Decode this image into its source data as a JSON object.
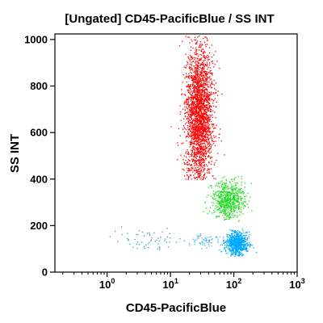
{
  "chart_data": {
    "type": "scatter",
    "title": "[Ungated] CD45-PacificBlue / SS INT",
    "xlabel": "CD45-PacificBlue",
    "ylabel": "SS INT",
    "x_scale": "log",
    "y_scale": "linear",
    "xlim": [
      0.15,
      1000
    ],
    "ylim": [
      0,
      1024
    ],
    "grid": false,
    "legend": "none",
    "x_ticks": [
      {
        "value": 1,
        "base": "10",
        "exp": "0"
      },
      {
        "value": 10,
        "base": "10",
        "exp": "1"
      },
      {
        "value": 100,
        "base": "10",
        "exp": "2"
      },
      {
        "value": 1000,
        "base": "10",
        "exp": "3"
      }
    ],
    "y_ticks": [
      {
        "value": 0,
        "label": "0"
      },
      {
        "value": 200,
        "label": "200"
      },
      {
        "value": 400,
        "label": "400"
      },
      {
        "value": 600,
        "label": "600"
      },
      {
        "value": 800,
        "label": "800"
      },
      {
        "value": 1000,
        "label": "1000"
      }
    ],
    "populations": [
      {
        "color": "#ff0000",
        "x_center": 28,
        "x_spread_log10": 0.11,
        "y_center": 680,
        "y_range": [
          400,
          1020
        ],
        "y_spread": 150,
        "n": 2400
      },
      {
        "color": "#22dd22",
        "x_center": 80,
        "x_spread_log10": 0.13,
        "y_center": 310,
        "y_range": [
          220,
          420
        ],
        "y_spread": 40,
        "n": 700
      },
      {
        "color": "#00aaff",
        "x_center": 110,
        "x_spread_log10": 0.09,
        "y_center": 125,
        "y_range": [
          70,
          190
        ],
        "y_spread": 25,
        "n": 700
      },
      {
        "color": "#3399cc",
        "x_center": 4,
        "x_spread_log10": 0.25,
        "y_center": 140,
        "y_range": [
          90,
          200
        ],
        "y_spread": 25,
        "n": 60
      },
      {
        "color": "#55bbee",
        "x_center": 35,
        "x_spread_log10": 0.1,
        "y_center": 140,
        "y_range": [
          100,
          180
        ],
        "y_spread": 15,
        "n": 70
      }
    ]
  }
}
